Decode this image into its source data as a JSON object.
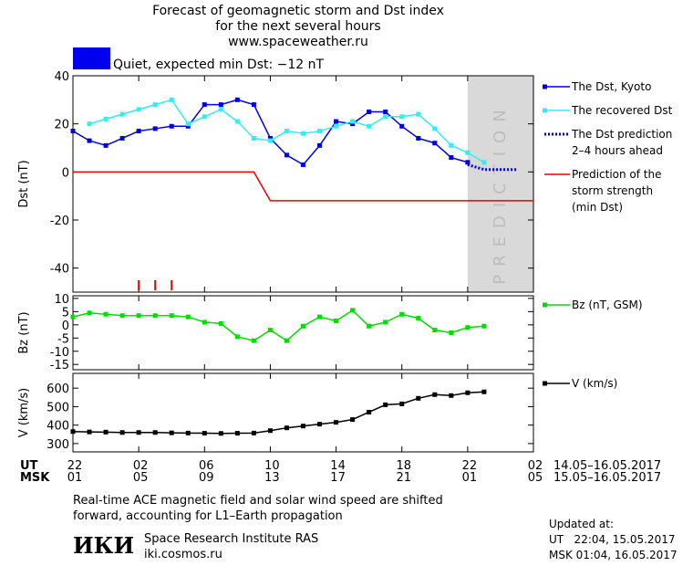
{
  "header": {
    "title_lines": [
      "Forecast of geomagnetic storm and Dst index",
      "for the next several hours",
      "www.spaceweather.ru"
    ],
    "status": "Quiet, expected min Dst: −12 nT",
    "status_color": "#0000ee"
  },
  "time_axis": {
    "xlim": [
      0,
      28
    ],
    "ticks": [
      0,
      4,
      8,
      12,
      16,
      20,
      24,
      28
    ],
    "rows": [
      {
        "name": "UT",
        "labels": [
          "22",
          "02",
          "06",
          "10",
          "14",
          "18",
          "22",
          "02"
        ],
        "range": "14.05–16.05.2017"
      },
      {
        "name": "MSK",
        "labels": [
          "01",
          "05",
          "09",
          "13",
          "17",
          "21",
          "01",
          "05"
        ],
        "range": "15.05–16.05.2017"
      }
    ]
  },
  "chart_data": [
    {
      "type": "line",
      "ylabel": "Dst (nT)",
      "ylim": [
        -50,
        40
      ],
      "yticks": [
        -40,
        -20,
        0,
        20,
        40
      ],
      "band": {
        "label": "PREDICTION",
        "xlim": [
          24,
          28
        ],
        "color": "#d9d9d9"
      },
      "event_marks": {
        "x": [
          4,
          5,
          6
        ],
        "color": "#ee0000"
      },
      "series": [
        {
          "name": "The Dst, Kyoto",
          "color": "#0000dd",
          "marker": "square",
          "style": "solid",
          "x": [
            0,
            1,
            2,
            3,
            4,
            5,
            6,
            7,
            8,
            9,
            10,
            11,
            12,
            13,
            14,
            15,
            16,
            17,
            18,
            19,
            20,
            21,
            22,
            23,
            24
          ],
          "values": [
            17,
            13,
            11,
            14,
            17,
            18,
            19,
            19,
            28,
            28,
            30,
            28,
            14,
            7,
            3,
            11,
            21,
            20,
            25,
            25,
            19,
            14,
            12,
            6,
            4
          ]
        },
        {
          "name": "The recovered Dst",
          "color": "#33eeee",
          "marker": "square",
          "style": "solid",
          "x": [
            1,
            2,
            3,
            4,
            5,
            6,
            7,
            8,
            9,
            10,
            11,
            12,
            13,
            14,
            15,
            16,
            17,
            18,
            19,
            20,
            21,
            22,
            23,
            24,
            25
          ],
          "values": [
            20,
            22,
            24,
            26,
            28,
            30,
            20,
            23,
            26,
            21,
            14,
            13,
            17,
            16,
            17,
            19,
            21,
            19,
            23,
            23,
            24,
            18,
            11,
            8,
            4
          ]
        },
        {
          "name": "The Dst prediction\n2–4 hours ahead",
          "color": "#0000dd",
          "marker": "none",
          "style": "dotted",
          "x": [
            24,
            25,
            26,
            27
          ],
          "values": [
            3,
            1,
            1,
            1
          ]
        },
        {
          "name": "Prediction of the\nstorm strength\n(min Dst)",
          "color": "#ee0000",
          "marker": "none",
          "style": "solid",
          "x": [
            0,
            11,
            12,
            28
          ],
          "values": [
            0,
            0,
            -12,
            -12
          ]
        }
      ]
    },
    {
      "type": "line",
      "ylabel": "Bz (nT)",
      "ylim": [
        -17,
        11
      ],
      "yticks": [
        -15,
        -10,
        -5,
        0,
        5,
        10
      ],
      "series": [
        {
          "name": "Bz (nT, GSM)",
          "color": "#00dd00",
          "marker": "square",
          "style": "solid",
          "x": [
            0,
            1,
            2,
            3,
            4,
            5,
            6,
            7,
            8,
            9,
            10,
            11,
            12,
            13,
            14,
            15,
            16,
            17,
            18,
            19,
            20,
            21,
            22,
            23,
            24,
            25
          ],
          "values": [
            3,
            4.5,
            4,
            3.5,
            3.5,
            3.5,
            3.5,
            3,
            1,
            0.5,
            -4.5,
            -6,
            -2,
            -6,
            -0.5,
            3,
            1.5,
            5.5,
            -0.5,
            1,
            4,
            2.5,
            -2,
            -3,
            -1,
            -0.5
          ]
        }
      ]
    },
    {
      "type": "line",
      "ylabel": "V (km/s)",
      "ylim": [
        255,
        680
      ],
      "yticks": [
        300,
        400,
        500,
        600
      ],
      "series": [
        {
          "name": "V (km/s)",
          "color": "#000000",
          "marker": "square",
          "style": "solid",
          "x": [
            0,
            1,
            2,
            3,
            4,
            5,
            6,
            7,
            8,
            9,
            10,
            11,
            12,
            13,
            14,
            15,
            16,
            17,
            18,
            19,
            20,
            21,
            22,
            23,
            24,
            25
          ],
          "values": [
            365,
            363,
            362,
            360,
            360,
            360,
            358,
            357,
            356,
            355,
            356,
            357,
            370,
            385,
            395,
            405,
            415,
            430,
            470,
            510,
            515,
            545,
            565,
            560,
            575,
            580
          ]
        }
      ]
    }
  ],
  "footer": {
    "note": "Real-time ACE magnetic field and solar wind speed are shifted\nforward, accounting for L1–Earth propagation",
    "logo": "ИКИ",
    "institute": "Space Research Institute RAS",
    "site": "iki.cosmos.ru",
    "updated": [
      "Updated at:",
      "UT   22:04, 15.05.2017",
      "MSK 01:04, 16.05.2017"
    ]
  }
}
